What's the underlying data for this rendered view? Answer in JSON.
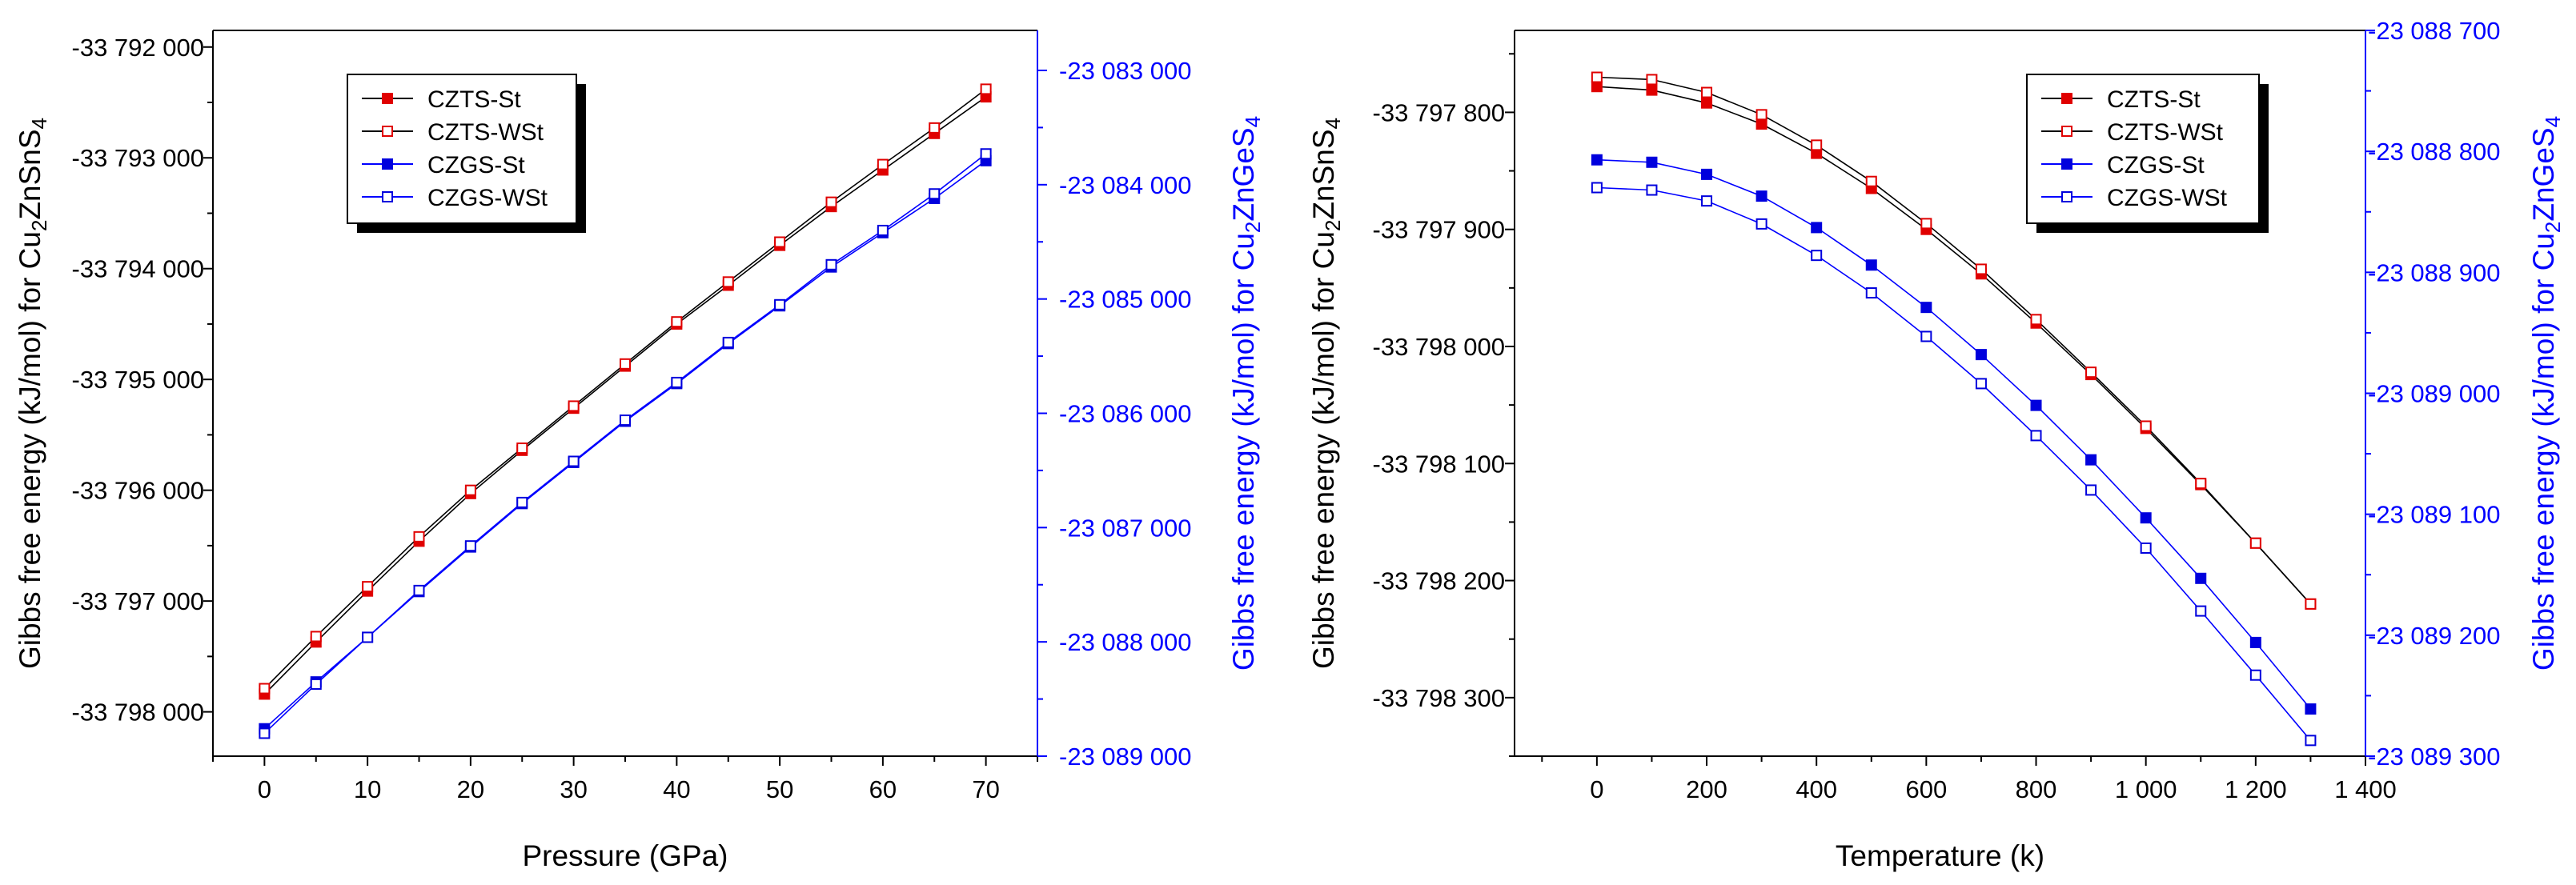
{
  "chart_data": [
    {
      "type": "line",
      "id": "pressure",
      "title": "",
      "xlabel": "Pressure (GPa)",
      "ylabel_left": "Gibbs free energy (kJ/mol) for Cu",
      "ylabel_left_sub": "2",
      "ylabel_left_mid": "ZnSnS",
      "ylabel_left_sub2": "4",
      "ylabel_right": "Gibbs free energy (kJ/mol) for Cu",
      "ylabel_right_sub": "2",
      "ylabel_right_mid": "ZnGeS",
      "ylabel_right_sub2": "4",
      "xlim": [
        -5,
        75
      ],
      "xticks": [
        0,
        10,
        20,
        30,
        40,
        50,
        60,
        70
      ],
      "xtick_labels": [
        "0",
        "10",
        "20",
        "30",
        "40",
        "50",
        "60",
        "70"
      ],
      "ylim_left": [
        -33798400,
        -33791850
      ],
      "yticks_left": [
        -33798000,
        -33797000,
        -33796000,
        -33795000,
        -33794000,
        -33793000,
        -33792000
      ],
      "ytick_labels_left": [
        "-33 798 000",
        "-33 797 000",
        "-33 796 000",
        "-33 795 000",
        "-33 794 000",
        "-33 793 000",
        "-33 792 000"
      ],
      "ylim_right": [
        -23089000,
        -23082650
      ],
      "yticks_right": [
        -23089000,
        -23088000,
        -23087000,
        -23086000,
        -23085000,
        -23084000,
        -23083000
      ],
      "ytick_labels_right": [
        "-23 089 000",
        "-23 088 000",
        "-23 087 000",
        "-23 086 000",
        "-23 085 000",
        "-23 084 000",
        "-23 083 000"
      ],
      "legend_position": "top-left",
      "x": [
        0,
        5,
        10,
        15,
        20,
        25,
        30,
        35,
        40,
        45,
        50,
        55,
        60,
        65,
        70
      ],
      "series": [
        {
          "name": "CZTS-St",
          "axis": "left",
          "color": "#e00000",
          "marker": "filled",
          "values": [
            -33797840,
            -33797370,
            -33796910,
            -33796460,
            -33796030,
            -33795640,
            -33795260,
            -33794880,
            -33794500,
            -33794150,
            -33793790,
            -33793440,
            -33793110,
            -33792780,
            -33792450
          ]
        },
        {
          "name": "CZTS-WSt",
          "axis": "left",
          "color": "#e00000",
          "marker": "open",
          "values": [
            -33797790,
            -33797320,
            -33796870,
            -33796420,
            -33796000,
            -33795620,
            -33795240,
            -33794860,
            -33794480,
            -33794120,
            -33793760,
            -33793400,
            -33793060,
            -33792730,
            -33792380
          ]
        },
        {
          "name": "CZGS-St",
          "axis": "right",
          "color": "#0000dd",
          "marker": "filled",
          "values": [
            -23088760,
            -23088350,
            -23087960,
            -23087560,
            -23087170,
            -23086790,
            -23086430,
            -23086070,
            -23085740,
            -23085390,
            -23085060,
            -23084720,
            -23084420,
            -23084120,
            -23083790
          ]
        },
        {
          "name": "CZGS-WSt",
          "axis": "right",
          "color": "#0000dd",
          "marker": "open",
          "values": [
            -23088800,
            -23088370,
            -23087960,
            -23087550,
            -23087160,
            -23086780,
            -23086420,
            -23086060,
            -23085730,
            -23085380,
            -23085050,
            -23084700,
            -23084400,
            -23084080,
            -23083730
          ]
        }
      ]
    },
    {
      "type": "line",
      "id": "temperature",
      "title": "",
      "xlabel": "Temperature (k)",
      "ylabel_left": "Gibbs free energy (kJ/mol) for Cu",
      "ylabel_left_sub": "2",
      "ylabel_left_mid": "ZnSnS",
      "ylabel_left_sub2": "4",
      "ylabel_right": "Gibbs free energy (kJ/mol) for Cu",
      "ylabel_right_sub": "2",
      "ylabel_right_mid": "ZnGeS",
      "ylabel_right_sub2": "4",
      "xlim": [
        -150,
        1400
      ],
      "xticks": [
        0,
        200,
        400,
        600,
        800,
        1000,
        1200,
        1400
      ],
      "xtick_labels": [
        "0",
        "200",
        "400",
        "600",
        "800",
        "1 000",
        "1 200",
        "1 400"
      ],
      "ylim_left": [
        -33798350,
        -33797730
      ],
      "yticks_left": [
        -33797800,
        -33797900,
        -33798000,
        -33798100,
        -33798200,
        -33798300
      ],
      "ytick_labels_left": [
        "-33 797 800",
        "-33 797 900",
        "-33 798 000",
        "-33 798 100",
        "-33 798 200",
        "-33 798 300"
      ],
      "ylim_right": [
        -23089300,
        -23088700
      ],
      "yticks_right": [
        -23088700,
        -23088800,
        -23088900,
        -23089000,
        -23089100,
        -23089200,
        -23089300
      ],
      "ytick_labels_right": [
        "-23 088 700",
        "-23 088 800",
        "-23 088 900",
        "-23 089 000",
        "-23 089 100",
        "-23 089 200",
        "-23 089 300"
      ],
      "legend_position": "top-right",
      "x": [
        0,
        100,
        200,
        300,
        400,
        500,
        600,
        700,
        800,
        900,
        1000,
        1100,
        1200,
        1300
      ],
      "series": [
        {
          "name": "CZTS-St",
          "axis": "left",
          "color": "#e00000",
          "marker": "filled",
          "values": [
            -33797778,
            -33797781,
            -33797792,
            -33797810,
            -33797835,
            -33797865,
            -33797900,
            -33797938,
            -33797980,
            -33798024,
            -33798070,
            -33798118,
            -33798168,
            -33798220
          ]
        },
        {
          "name": "CZTS-WSt",
          "axis": "left",
          "color": "#e00000",
          "marker": "open",
          "values": [
            -33797770,
            -33797772,
            -33797783,
            -33797802,
            -33797828,
            -33797859,
            -33797895,
            -33797934,
            -33797977,
            -33798022,
            -33798068,
            -33798117,
            -33798168,
            -33798220
          ]
        },
        {
          "name": "CZGS-St",
          "axis": "right",
          "color": "#0000dd",
          "marker": "filled",
          "values": [
            -23088807,
            -23088809,
            -23088819,
            -23088837,
            -23088863,
            -23088894,
            -23088929,
            -23088968,
            -23089010,
            -23089055,
            -23089103,
            -23089153,
            -23089206,
            -23089261
          ]
        },
        {
          "name": "CZGS-WSt",
          "axis": "right",
          "color": "#0000dd",
          "marker": "open",
          "values": [
            -23088830,
            -23088832,
            -23088841,
            -23088860,
            -23088886,
            -23088917,
            -23088953,
            -23088992,
            -23089035,
            -23089080,
            -23089128,
            -23089180,
            -23089233,
            -23089287
          ]
        }
      ]
    }
  ]
}
